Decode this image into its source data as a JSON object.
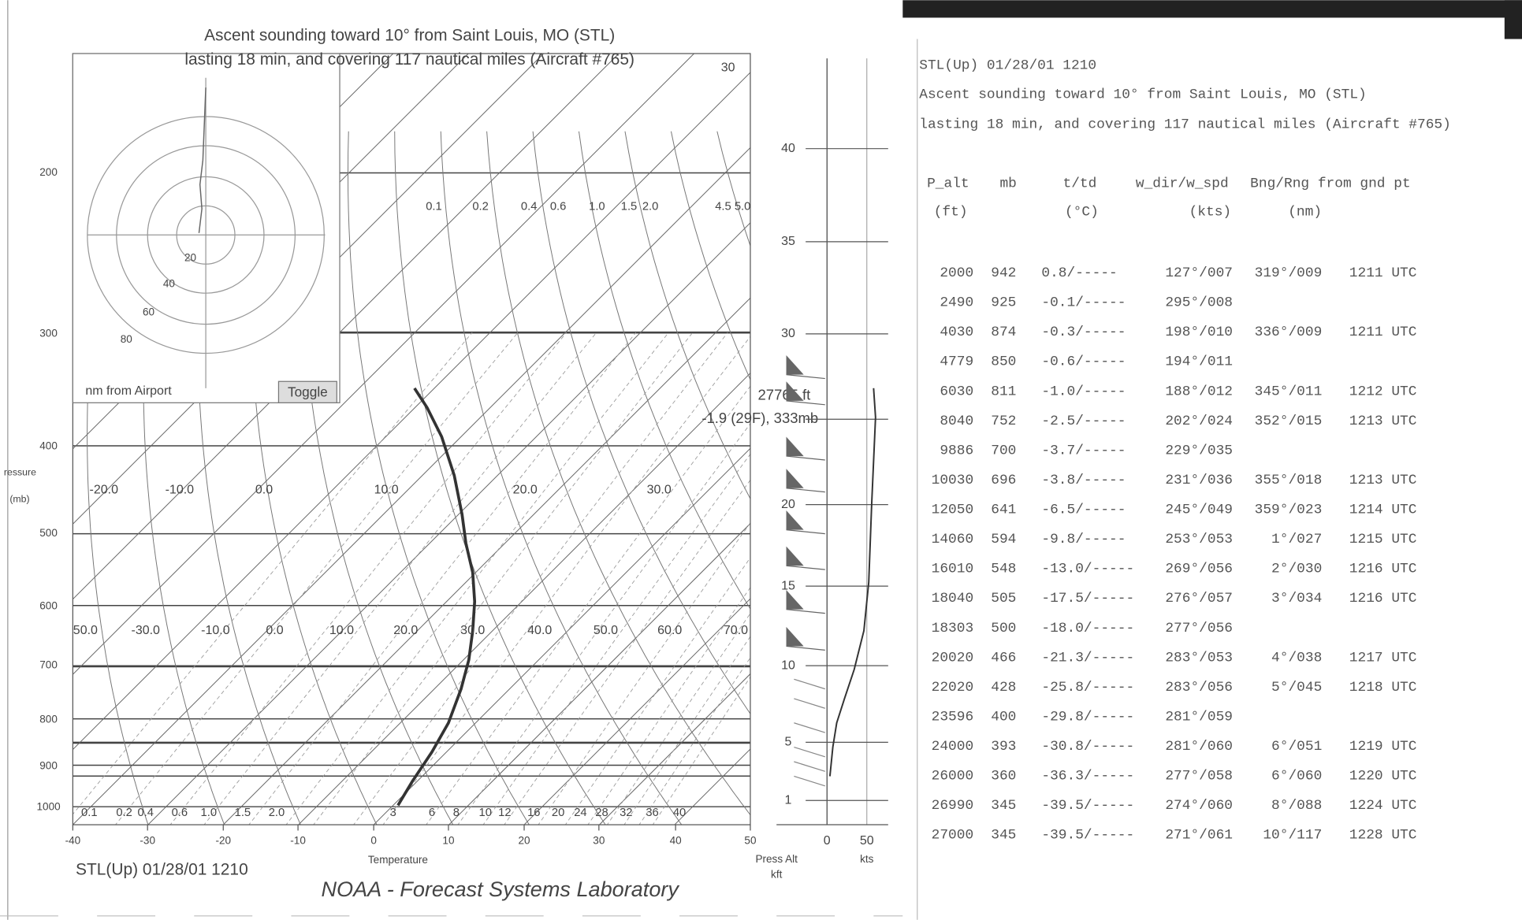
{
  "diagram": {
    "title": [
      "Ascent sounding toward 10° from Saint Louis, MO (STL)",
      "lasting 18 min, and covering 117 nautical miles (Aircraft #765)"
    ],
    "top_right_label": "30",
    "pressure_labels": [
      "200",
      "300",
      "400",
      "500",
      "600",
      "700",
      "800",
      "900",
      "1000"
    ],
    "pressure_axis_label": [
      "ressure",
      "(mb)"
    ],
    "temp_axis_labels": [
      "-40",
      "-30",
      "-20",
      "-10",
      "0",
      "10",
      "20",
      "30",
      "40",
      "50"
    ],
    "temp_axis_title": "Temperature",
    "mixing_ratio_labels": [
      "0.1",
      "0.2",
      "0.4",
      "0.6",
      "1.0",
      "1.5",
      "2.0",
      "4.5",
      "5.0"
    ],
    "mixing_ratio_labels_bottom": [
      "0.1",
      "0.2",
      "0.4",
      "0.6",
      "1.0",
      "1.5",
      "2.0",
      "3",
      "6",
      "8",
      "10",
      "12",
      "16",
      "20",
      "24",
      "28",
      "32",
      "36",
      "40"
    ],
    "isotherm_labels_upper": [
      "-20.0",
      "-10.0",
      "0.0",
      "10.0",
      "20.0",
      "30.0"
    ],
    "isotherm_labels_lower": [
      "50.0",
      "-30.0",
      "-10.0",
      "0.0",
      "10.0",
      "20.0",
      "30.0",
      "40.0",
      "50.0",
      "60.0",
      "70.0"
    ],
    "hodograph": {
      "rings": [
        "20",
        "40",
        "60",
        "80"
      ],
      "caption": "nm from Airport",
      "button": "Toggle"
    },
    "annotations": [
      "27765 ft",
      "-1.9 (29F), 333mb"
    ],
    "footer_left": "STL(Up) 01/28/01 1210",
    "footer_credit": "NOAA - Forecast Systems Laboratory"
  },
  "altitude_panel": {
    "ticks": [
      "40",
      "35",
      "30",
      "20",
      "15",
      "10",
      "5",
      "1"
    ],
    "label": [
      "Press Alt",
      "kft"
    ],
    "speed_ticks": [
      "0",
      "50"
    ],
    "speed_label": "kts"
  },
  "table": {
    "header_lines": [
      "STL(Up) 01/28/01 1210",
      "Ascent sounding toward 10° from Saint Louis, MO (STL)",
      "lasting 18 min, and covering 117 nautical miles (Aircraft #765)"
    ],
    "columns": [
      [
        "P_alt",
        "(ft)"
      ],
      [
        "mb"
      ],
      [
        "t/td",
        "(°C)"
      ],
      [
        "w_dir/w_spd",
        "(kts)"
      ],
      [
        "Bng/Rng from gnd pt",
        "(nm)"
      ]
    ],
    "rows": [
      [
        "2000",
        "942",
        "0.8/-----",
        "127°/007",
        "319°/009",
        "1211 UTC"
      ],
      [
        "2490",
        "925",
        "-0.1/-----",
        "295°/008"
      ],
      [
        "4030",
        "874",
        "-0.3/-----",
        "198°/010",
        "336°/009",
        "1211 UTC"
      ],
      [
        "4779",
        "850",
        "-0.6/-----",
        "194°/011"
      ],
      [
        "6030",
        "811",
        "-1.0/-----",
        "188°/012",
        "345°/011",
        "1212 UTC"
      ],
      [
        "8040",
        "752",
        "-2.5/-----",
        "202°/024",
        "352°/015",
        "1213 UTC"
      ],
      [
        "9886",
        "700",
        "-3.7/-----",
        "229°/035"
      ],
      [
        "10030",
        "696",
        "-3.8/-----",
        "231°/036",
        "355°/018",
        "1213 UTC"
      ],
      [
        "12050",
        "641",
        "-6.5/-----",
        "245°/049",
        "359°/023",
        "1214 UTC"
      ],
      [
        "14060",
        "594",
        "-9.8/-----",
        "253°/053",
        "1°/027",
        "1215 UTC"
      ],
      [
        "16010",
        "548",
        "-13.0/-----",
        "269°/056",
        "2°/030",
        "1216 UTC"
      ],
      [
        "18040",
        "505",
        "-17.5/-----",
        "276°/057",
        "3°/034",
        "1216 UTC"
      ],
      [
        "18303",
        "500",
        "-18.0/-----",
        "277°/056"
      ],
      [
        "20020",
        "466",
        "-21.3/-----",
        "283°/053",
        "4°/038",
        "1217 UTC"
      ],
      [
        "22020",
        "428",
        "-25.8/-----",
        "283°/056",
        "5°/045",
        "1218 UTC"
      ],
      [
        "23596",
        "400",
        "-29.8/-----",
        "281°/059"
      ],
      [
        "24000",
        "393",
        "-30.8/-----",
        "281°/060",
        "6°/051",
        "1219 UTC"
      ],
      [
        "26000",
        "360",
        "-36.3/-----",
        "277°/058",
        "6°/060",
        "1220 UTC"
      ],
      [
        "26990",
        "345",
        "-39.5/-----",
        "274°/060",
        "8°/088",
        "1224 UTC"
      ],
      [
        "27000",
        "345",
        "-39.5/-----",
        "271°/061",
        "10°/117",
        "1228 UTC"
      ]
    ]
  }
}
